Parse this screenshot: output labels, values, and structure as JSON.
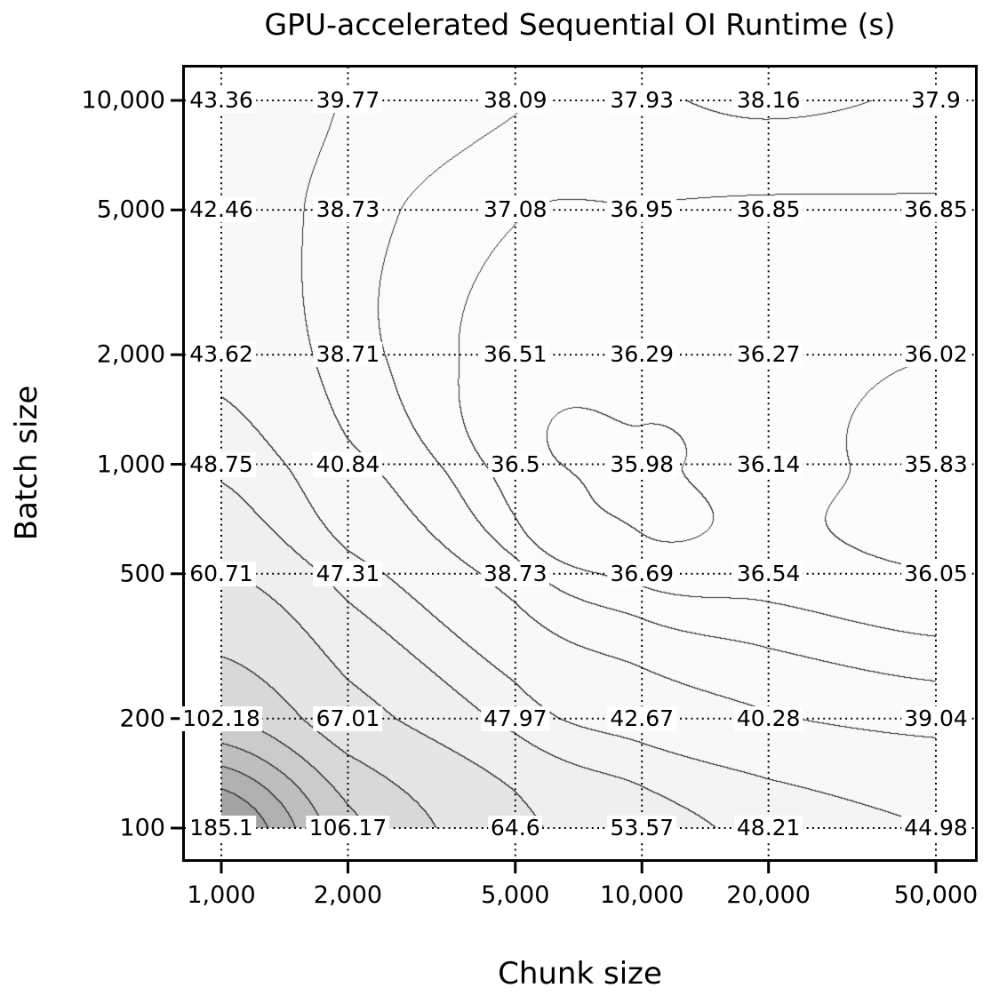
{
  "chart_data": {
    "type": "heatmap",
    "variant": "filled-contour-with-grid-value-labels",
    "title": "GPU-accelerated Sequential OI Runtime (s)",
    "xlabel": "Chunk size",
    "ylabel": "Batch size",
    "x_scale": "log",
    "y_scale": "log",
    "grid_style": "dotted",
    "x_ticks": {
      "values": [
        1000,
        2000,
        5000,
        10000,
        20000,
        50000
      ],
      "labels": [
        "1,000",
        "2,000",
        "5,000",
        "10,000",
        "20,000",
        "50,000"
      ]
    },
    "y_ticks": {
      "values": [
        10000,
        5000,
        2000,
        1000,
        500,
        200,
        100
      ],
      "labels": [
        "10,000",
        "5,000",
        "2,000",
        "1,000",
        "500",
        "200",
        "100"
      ]
    },
    "rows": [
      {
        "batch": "10,000",
        "values": [
          43.36,
          39.77,
          38.09,
          37.93,
          38.16,
          37.9
        ]
      },
      {
        "batch": "5,000",
        "values": [
          42.46,
          38.73,
          37.08,
          36.95,
          36.85,
          36.85
        ]
      },
      {
        "batch": "2,000",
        "values": [
          43.62,
          38.71,
          36.51,
          36.29,
          36.27,
          36.02
        ]
      },
      {
        "batch": "1,000",
        "values": [
          48.75,
          40.84,
          36.5,
          35.98,
          36.14,
          35.83
        ]
      },
      {
        "batch": "500",
        "values": [
          60.71,
          47.31,
          38.73,
          36.69,
          36.54,
          36.05
        ]
      },
      {
        "batch": "200",
        "values": [
          102.18,
          67.01,
          47.97,
          42.67,
          40.28,
          39.04
        ]
      },
      {
        "batch": "100",
        "values": [
          185.1,
          106.17,
          64.6,
          53.57,
          48.21,
          44.98
        ]
      }
    ],
    "z_range": [
      35.83,
      185.1
    ],
    "contour_levels": [
      36,
      37,
      38,
      40,
      45,
      50,
      60,
      80,
      100,
      120,
      140,
      160,
      180
    ],
    "colors": {
      "fill_lightest": "#fcfcfc",
      "fill_darkest": "#9b9b9b",
      "contour_line": "#2e2e2e",
      "frame": "#000000",
      "grid": "#000000",
      "text": "#000000",
      "label_chip_bg": "#ffffff"
    }
  }
}
